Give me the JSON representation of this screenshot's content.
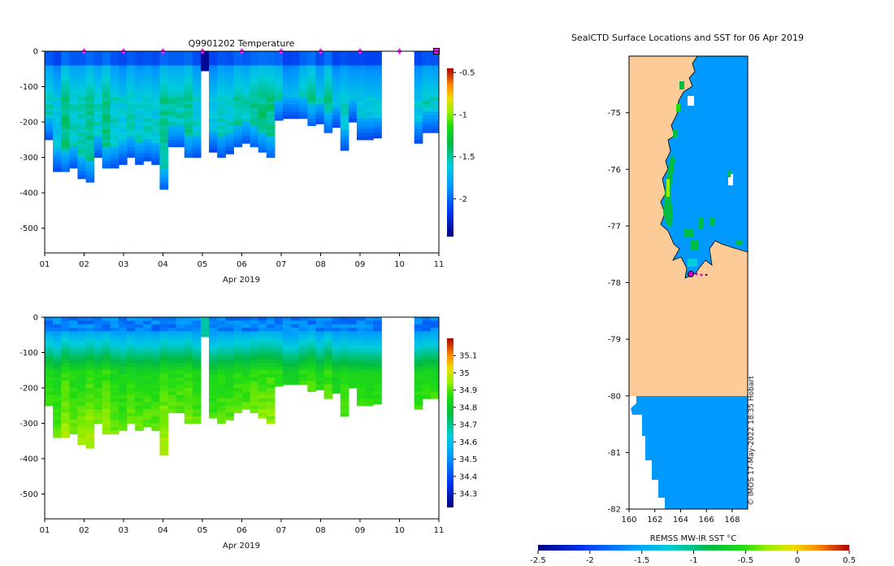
{
  "chart_data": [
    {
      "type": "heatmap",
      "title": "Q9901202  Temperature",
      "xlabel": "Apr 2019",
      "x_ticks": [
        "01",
        "02",
        "03",
        "04",
        "05",
        "06",
        "07",
        "08",
        "09",
        "10",
        "11"
      ],
      "y_ticks": [
        "0",
        "-100",
        "-200",
        "-300",
        "-400",
        "-500"
      ],
      "ylim": [
        -570,
        0
      ],
      "xlim": [
        1,
        11
      ],
      "colorbar": {
        "min": -2.45,
        "max": -0.45,
        "ticks": [
          "-0.5",
          "-1",
          "-1.5",
          "-2"
        ],
        "tick_values": [
          -0.5,
          -1,
          -1.5,
          -2
        ]
      },
      "profile_markers_day": [
        2,
        3,
        4,
        5,
        6,
        7,
        8,
        9,
        10
      ],
      "last_position_day": 11,
      "profile_depths_m": [
        250,
        340,
        340,
        330,
        360,
        370,
        300,
        330,
        330,
        320,
        300,
        320,
        310,
        320,
        390,
        270,
        270,
        300,
        300,
        55,
        285,
        300,
        290,
        270,
        260,
        270,
        285,
        300,
        195,
        190,
        190,
        190,
        210,
        205,
        230,
        215,
        280,
        200,
        250,
        250,
        245,
        0,
        0,
        0,
        0,
        260,
        230,
        230
      ]
    },
    {
      "type": "heatmap",
      "title": "",
      "xlabel": "Apr 2019",
      "x_ticks": [
        "01",
        "02",
        "03",
        "04",
        "05",
        "06",
        "07",
        "08",
        "09",
        "10",
        "11"
      ],
      "y_ticks": [
        "0",
        "-100",
        "-200",
        "-300",
        "-400",
        "-500"
      ],
      "ylim": [
        -570,
        0
      ],
      "xlim": [
        1,
        11
      ],
      "colorbar": {
        "min": 34.22,
        "max": 35.2,
        "ticks": [
          "35.1",
          "35",
          "34.9",
          "34.8",
          "34.7",
          "34.6",
          "34.5",
          "34.4",
          "34.3"
        ],
        "tick_values": [
          35.1,
          35,
          34.9,
          34.8,
          34.7,
          34.6,
          34.5,
          34.4,
          34.3
        ]
      }
    },
    {
      "type": "heatmap",
      "title": "SealCTD Surface Locations and SST for 06 Apr 2019",
      "x_ticks": [
        "160",
        "162",
        "164",
        "166",
        "168"
      ],
      "x_tick_values": [
        160,
        162,
        164,
        166,
        168
      ],
      "y_ticks": [
        "-75",
        "-76",
        "-77",
        "-78",
        "-79",
        "-80",
        "-81",
        "-82"
      ],
      "y_tick_values": [
        -75,
        -76,
        -77,
        -78,
        -79,
        -80,
        -81,
        -82
      ],
      "xlim": [
        160,
        169.2
      ],
      "ylim": [
        -82,
        -74
      ],
      "last_position": {
        "lon": 165.1,
        "lat": -77.85
      },
      "colorbar": {
        "label": "REMSS MW-IR SST °C",
        "min": -2.5,
        "max": 0.5,
        "ticks": [
          "-2.5",
          "-2",
          "-1.5",
          "-1",
          "-0.5",
          "0",
          "0.5"
        ],
        "tick_values": [
          -2.5,
          -2,
          -1.5,
          -1,
          -0.5,
          0,
          0.5
        ]
      },
      "copyright": "© IMOS 17-May-2022 18:35 Hobart"
    }
  ]
}
